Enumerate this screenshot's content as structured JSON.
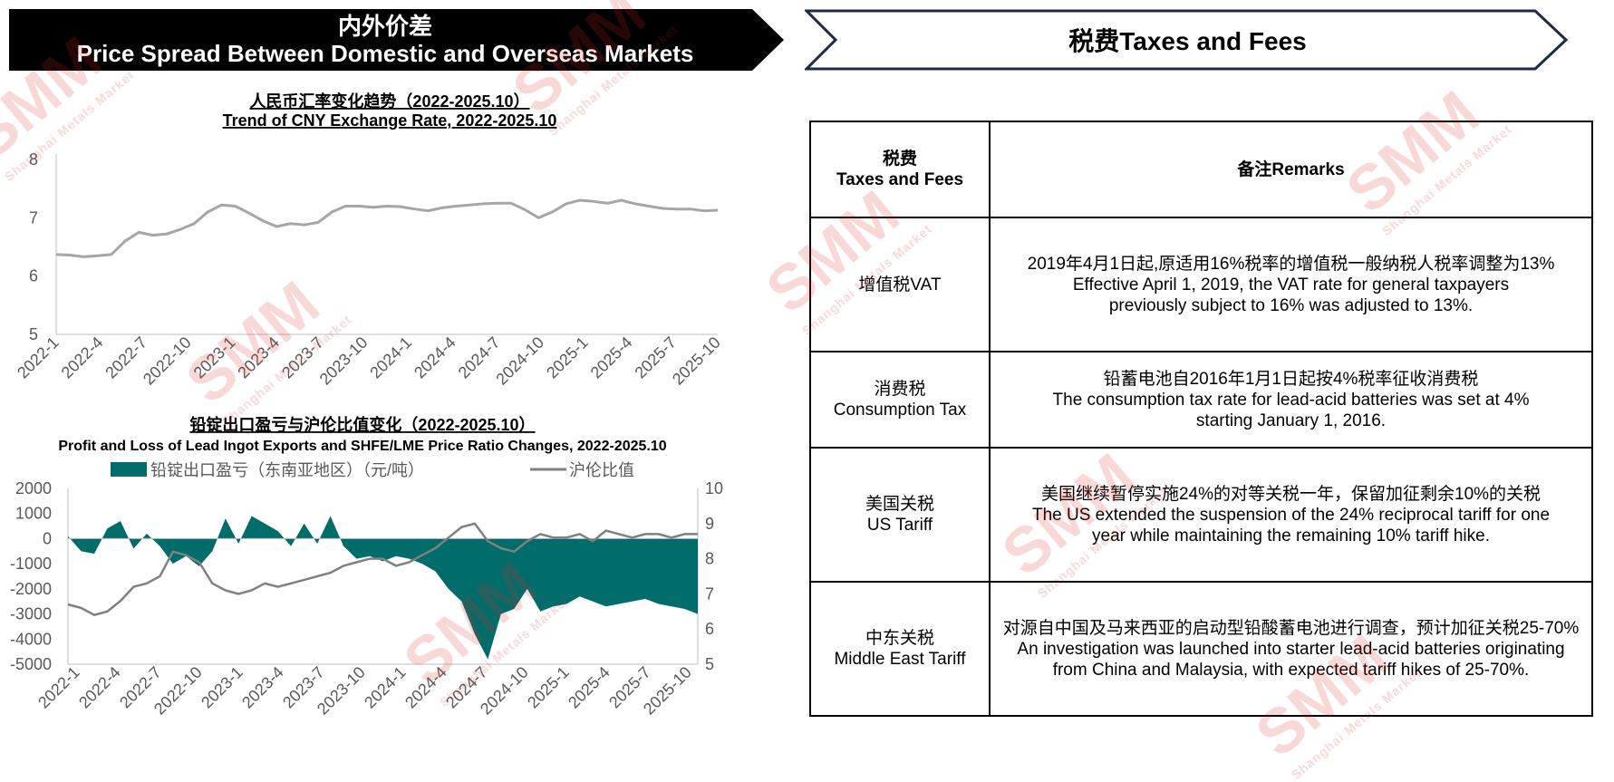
{
  "header_left": {
    "title_cn": "内外价差",
    "title_en": "Price Spread Between Domestic and Overseas Markets",
    "color": "#000000"
  },
  "header_right": {
    "title": "税费Taxes and Fees"
  },
  "watermark": {
    "text": "SMM",
    "sub": "Shanghai Metals Market"
  },
  "chart_data": [
    {
      "type": "line",
      "title": "人民币汇率变化趋势（2022-2025.10）",
      "subtitle": "Trend of CNY Exchange Rate, 2022-2025.10",
      "x_ticks": [
        "2022-1",
        "2022-4",
        "2022-7",
        "2022-10",
        "2023-1",
        "2023-4",
        "2023-7",
        "2023-10",
        "2024-1",
        "2024-4",
        "2024-7",
        "2024-10",
        "2025-1",
        "2025-4",
        "2025-7",
        "2025-10"
      ],
      "y_ticks": [
        "5",
        "6",
        "7",
        "8"
      ],
      "ylim": [
        5,
        8
      ],
      "series": [
        {
          "color": "#a6a6a6",
          "values": [
            6.37,
            6.36,
            6.33,
            6.35,
            6.37,
            6.6,
            6.75,
            6.7,
            6.72,
            6.8,
            6.9,
            7.1,
            7.22,
            7.2,
            7.08,
            6.95,
            6.85,
            6.9,
            6.88,
            6.92,
            7.1,
            7.2,
            7.2,
            7.18,
            7.2,
            7.19,
            7.15,
            7.12,
            7.17,
            7.2,
            7.22,
            7.24,
            7.25,
            7.25,
            7.14,
            7.0,
            7.1,
            7.24,
            7.3,
            7.28,
            7.25,
            7.3,
            7.24,
            7.2,
            7.16,
            7.15,
            7.15,
            7.12,
            7.13
          ]
        }
      ],
      "grid": false
    },
    {
      "type": "bar+line",
      "title": "铅锭出口盈亏与沪伦比值变化（2022-2025.10）",
      "subtitle": "Profit and Loss of Lead Ingot Exports and SHFE/LME Price Ratio Changes, 2022-2025.10",
      "x_ticks": [
        "2022-1",
        "2022-4",
        "2022-7",
        "2022-10",
        "2023-1",
        "2023-4",
        "2023-7",
        "2023-10",
        "2024-1",
        "2024-4",
        "2024-7",
        "2024-10",
        "2025-1",
        "2025-4",
        "2025-7",
        "2025-10"
      ],
      "y_left_ticks": [
        "-5000",
        "-4000",
        "-3000",
        "-2000",
        "-1000",
        "0",
        "1000",
        "2000"
      ],
      "y_right_ticks": [
        "5",
        "6",
        "7",
        "8",
        "9",
        "10"
      ],
      "ylim_left": [
        -5000,
        2000
      ],
      "ylim_right": [
        5,
        10
      ],
      "legend_position": "top",
      "series": [
        {
          "name": "铅锭出口盈亏（东南亚地区）（元/吨）",
          "color": "#006d6b",
          "axis": "left",
          "values": [
            100,
            -500,
            -600,
            400,
            700,
            -400,
            200,
            -300,
            -1000,
            -700,
            -1100,
            -500,
            800,
            -200,
            900,
            600,
            300,
            -300,
            600,
            -200,
            900,
            -300,
            -800,
            -700,
            -900,
            -700,
            -800,
            -1000,
            -1300,
            -2000,
            -2500,
            -3800,
            -4800,
            -3000,
            -2800,
            -2000,
            -2900,
            -2700,
            -2600,
            -2300,
            -2500,
            -2700,
            -2600,
            -2500,
            -2400,
            -2600,
            -2700,
            -2800,
            -3000
          ]
        },
        {
          "name": "沪伦比值",
          "color": "#808080",
          "axis": "right",
          "values": [
            6.7,
            6.6,
            6.4,
            6.5,
            6.8,
            7.2,
            7.3,
            7.5,
            8.2,
            8.1,
            7.9,
            7.3,
            7.1,
            7.0,
            7.1,
            7.3,
            7.2,
            7.3,
            7.4,
            7.5,
            7.6,
            7.8,
            7.9,
            8.0,
            8.0,
            7.8,
            7.9,
            8.1,
            8.3,
            8.6,
            8.9,
            9.0,
            8.5,
            8.3,
            8.2,
            8.5,
            8.7,
            8.6,
            8.6,
            8.7,
            8.5,
            8.8,
            8.7,
            8.6,
            8.7,
            8.7,
            8.6,
            8.7,
            8.7
          ]
        }
      ]
    }
  ],
  "tax_table": {
    "header": {
      "col1_cn": "税费",
      "col1_en": "Taxes and Fees",
      "col2": "备注Remarks"
    },
    "rows": [
      {
        "name_cn": "增值税VAT",
        "name_en": "",
        "remark_cn": "2019年4月1日起,原适用16%税率的增值税一般纳税人税率调整为13%",
        "remark_en": "Effective April 1, 2019, the VAT rate for general taxpayers previously subject to 16% was adjusted to 13%."
      },
      {
        "name_cn": "消费税",
        "name_en": "Consumption Tax",
        "remark_cn": "铅蓄电池自2016年1月1日起按4%税率征收消费税",
        "remark_en": "The consumption tax rate for lead-acid batteries was set at 4% starting January 1, 2016."
      },
      {
        "name_cn": "美国关税",
        "name_en": "US Tariff",
        "remark_cn": "美国继续暂停实施24%的对等关税一年，保留加征剩余10%的关税",
        "remark_en": "The US extended the suspension of the 24% reciprocal tariff for one year while maintaining the remaining 10% tariff hike."
      },
      {
        "name_cn": "中东关税",
        "name_en": "Middle East Tariff",
        "remark_cn": "对源自中国及马来西亚的启动型铅酸蓄电池进行调查，预计加征关税25-70%",
        "remark_en": "An investigation was launched into starter lead-acid batteries originating from China and Malaysia, with expected tariff hikes of 25-70%."
      }
    ]
  }
}
